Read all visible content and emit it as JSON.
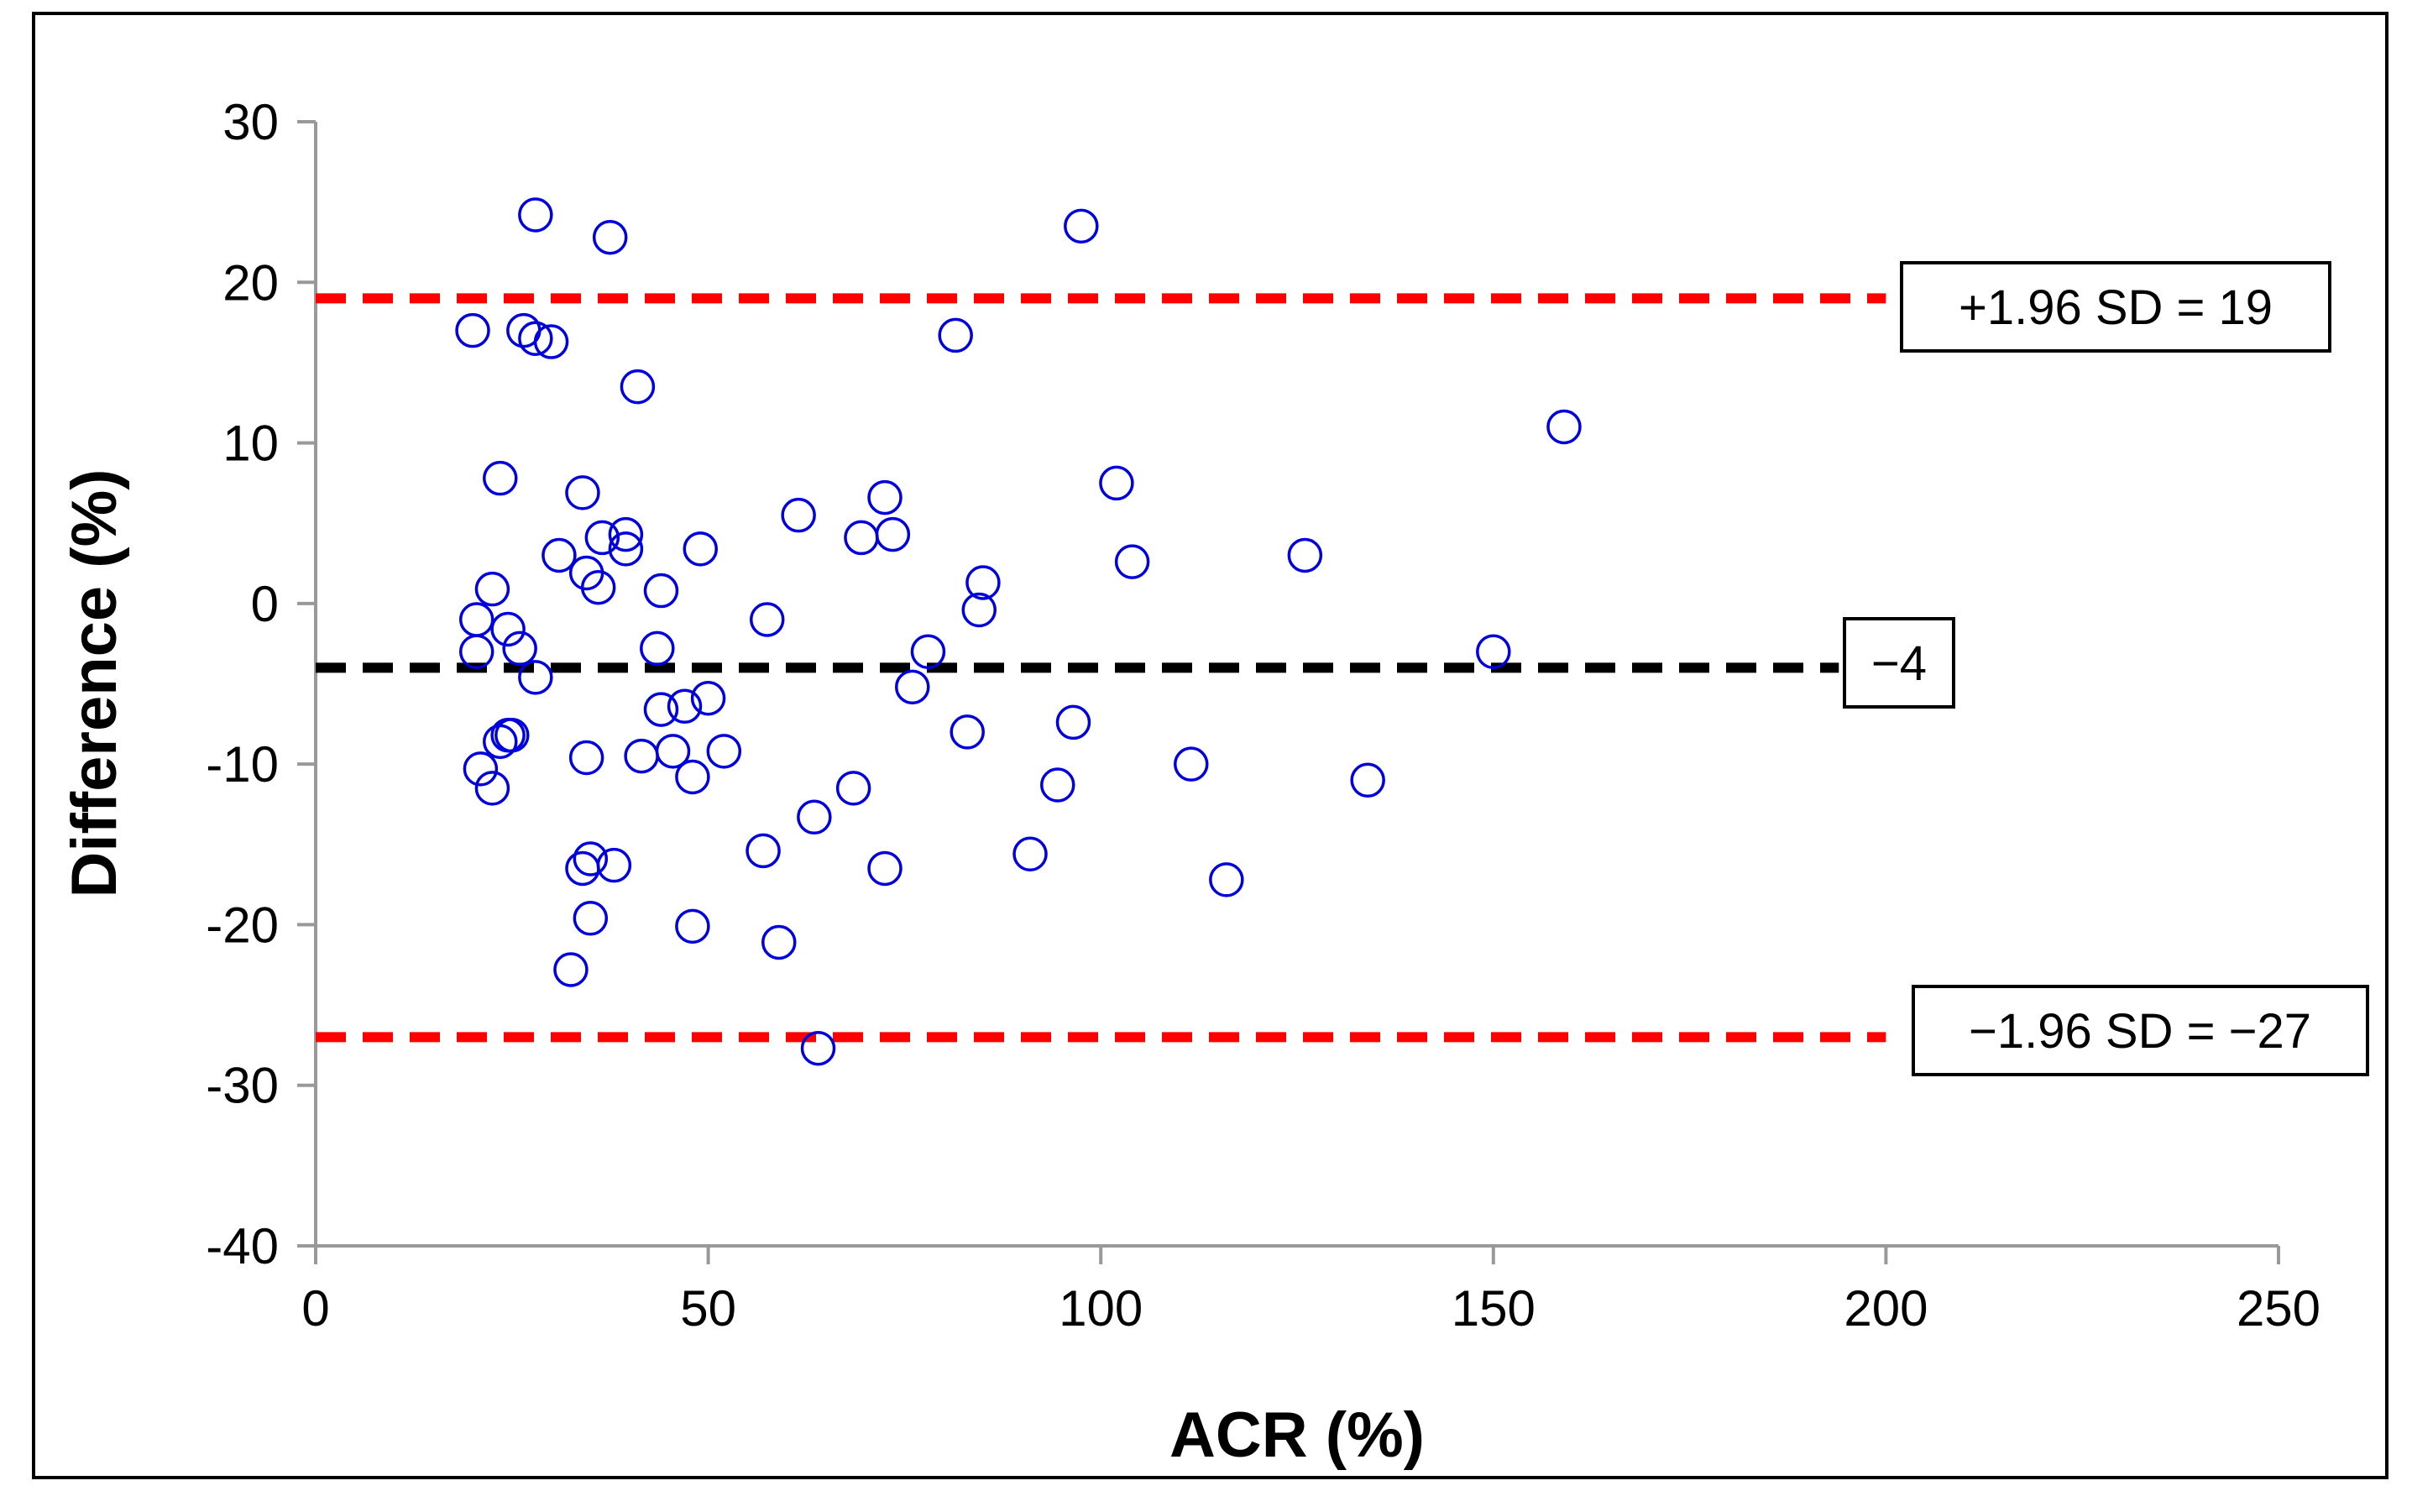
{
  "chart_data": {
    "type": "scatter",
    "title": "",
    "xlabel": "ACR (%)",
    "ylabel": "Difference (%)",
    "xlim": [
      0,
      250
    ],
    "ylim": [
      -40,
      30
    ],
    "x_ticks": [
      0,
      50,
      100,
      150,
      200,
      250
    ],
    "y_ticks": [
      -40,
      -30,
      -20,
      -10,
      0,
      10,
      20,
      30
    ],
    "grid": false,
    "legend": "none",
    "colors": {
      "points": "#0000dd",
      "limit_lines": "#ff0000",
      "mean_line": "#000000",
      "axis": "#999999"
    },
    "reference_lines": [
      {
        "name": "upper-limit",
        "value": 19,
        "label": "+1.96 SD = 19",
        "color": "#ff0000",
        "x_end": 200
      },
      {
        "name": "mean-difference",
        "value": -4,
        "label": "−4",
        "color": "#000000",
        "x_end": 194
      },
      {
        "name": "lower-limit",
        "value": -27,
        "label": "−1.96 SD = −27",
        "color": "#ff0000",
        "x_end": 200
      }
    ],
    "series": [
      {
        "name": "Difference",
        "points": [
          [
            28,
            24.2
          ],
          [
            37.5,
            22.8
          ],
          [
            97.5,
            23.5
          ],
          [
            20,
            17
          ],
          [
            26.5,
            17
          ],
          [
            28,
            16.5
          ],
          [
            30,
            16.3
          ],
          [
            81.5,
            16.7
          ],
          [
            41,
            13.5
          ],
          [
            159,
            11
          ],
          [
            23.5,
            7.8
          ],
          [
            34,
            6.9
          ],
          [
            72.5,
            6.6
          ],
          [
            102,
            7.5
          ],
          [
            61.5,
            5.5
          ],
          [
            39.5,
            4.3
          ],
          [
            36.5,
            4.1
          ],
          [
            69.5,
            4.1
          ],
          [
            73.5,
            4.3
          ],
          [
            31,
            3
          ],
          [
            39.5,
            3.4
          ],
          [
            49,
            3.4
          ],
          [
            104,
            2.6
          ],
          [
            126,
            3
          ],
          [
            34.5,
            1.9
          ],
          [
            36,
            1
          ],
          [
            44,
            0.8
          ],
          [
            85,
            1.3
          ],
          [
            22.5,
            0.9
          ],
          [
            84.5,
            -0.4
          ],
          [
            20.5,
            -1
          ],
          [
            57.5,
            -1
          ],
          [
            24.5,
            -1.6
          ],
          [
            43.5,
            -2.8
          ],
          [
            26,
            -2.8
          ],
          [
            20.5,
            -3
          ],
          [
            78,
            -3
          ],
          [
            150,
            -3
          ],
          [
            28,
            -4.6
          ],
          [
            76,
            -5.2
          ],
          [
            50,
            -5.9
          ],
          [
            44,
            -6.6
          ],
          [
            47,
            -6.4
          ],
          [
            96.5,
            -7.4
          ],
          [
            83,
            -8
          ],
          [
            24.5,
            -8.2
          ],
          [
            25,
            -8.2
          ],
          [
            23.5,
            -8.6
          ],
          [
            45.5,
            -9.2
          ],
          [
            52,
            -9.2
          ],
          [
            41.5,
            -9.5
          ],
          [
            34.5,
            -9.6
          ],
          [
            111.5,
            -10
          ],
          [
            21,
            -10.3
          ],
          [
            48,
            -10.8
          ],
          [
            134,
            -11
          ],
          [
            94.5,
            -11.3
          ],
          [
            68.5,
            -11.5
          ],
          [
            22.5,
            -11.5
          ],
          [
            63.5,
            -13.3
          ],
          [
            57,
            -15.4
          ],
          [
            91,
            -15.6
          ],
          [
            35,
            -15.9
          ],
          [
            34,
            -16.5
          ],
          [
            38,
            -16.3
          ],
          [
            72.5,
            -16.5
          ],
          [
            116,
            -17.2
          ],
          [
            35,
            -19.6
          ],
          [
            48,
            -20.1
          ],
          [
            59,
            -21.1
          ],
          [
            32.5,
            -22.8
          ],
          [
            64,
            -27.7
          ]
        ]
      }
    ]
  }
}
